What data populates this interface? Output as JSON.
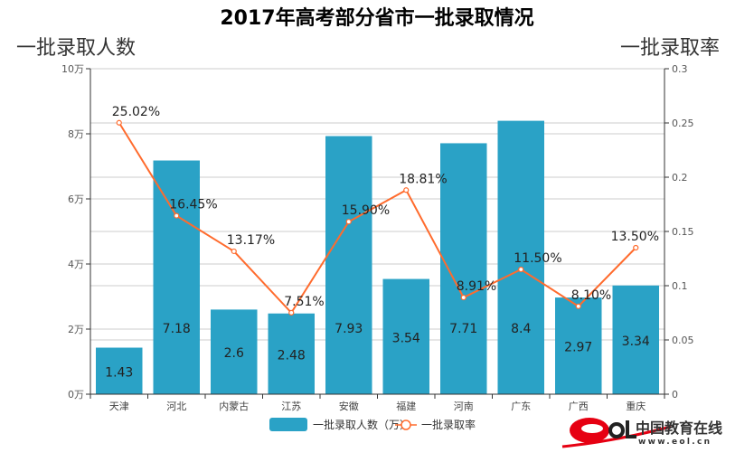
{
  "chart_data": {
    "type": "bar",
    "title": "2017年高考部分省市一批录取情况",
    "ylabel": "一批录取人数",
    "y2label": "一批录取率",
    "categories": [
      "天津",
      "河北",
      "内蒙古",
      "江苏",
      "安徽",
      "福建",
      "河南",
      "广东",
      "广西",
      "重庆"
    ],
    "ylim": [
      0,
      10
    ],
    "y_ticks": [
      "0万",
      "2万",
      "4万",
      "6万",
      "8万",
      "10万"
    ],
    "y2lim": [
      0,
      0.3
    ],
    "y2_ticks": [
      "0",
      "0.05",
      "0.1",
      "0.15",
      "0.2",
      "0.25",
      "0.3"
    ],
    "grid": true,
    "legend_position": "bottom",
    "series": [
      {
        "name": "一批录取人数（万）",
        "type": "bar",
        "axis": "left",
        "color": "#2aa2c6",
        "values": [
          1.43,
          7.18,
          2.6,
          2.48,
          7.93,
          3.54,
          7.71,
          8.4,
          2.97,
          3.34
        ],
        "labels": [
          "1.43",
          "7.18",
          "2.6",
          "2.48",
          "7.93",
          "3.54",
          "7.71",
          "8.4",
          "2.97",
          "3.34"
        ]
      },
      {
        "name": "一批录取率",
        "type": "line",
        "axis": "right",
        "color": "#ff6b2d",
        "values": [
          0.2502,
          0.1645,
          0.1317,
          0.0751,
          0.159,
          0.1881,
          0.0891,
          0.115,
          0.081,
          0.135
        ],
        "labels": [
          "25.02%",
          "16.45%",
          "13.17%",
          "7.51%",
          "15.90%",
          "18.81%",
          "8.91%",
          "11.50%",
          "8.10%",
          "13.50%"
        ]
      }
    ]
  },
  "logo": {
    "name": "中国教育在线",
    "url_text": "www.eol.cn",
    "mark": "eol"
  }
}
